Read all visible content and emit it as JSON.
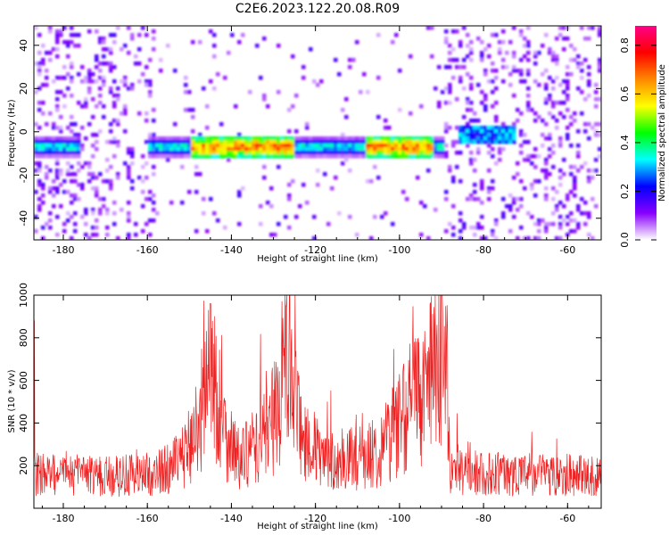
{
  "title": "C2E6.2023.122.20.08.R09",
  "colors": {
    "background": "#ffffff",
    "snr_line": "#ee2222",
    "axis": "#000000"
  },
  "chart_data": [
    {
      "type": "heatmap",
      "xlabel": "Height of straight line (km)",
      "ylabel": "Frequency (Hz)",
      "xlim": [
        -187,
        -52
      ],
      "ylim": [
        -50,
        49
      ],
      "xticks": [
        "-180",
        "-160",
        "-140",
        "-120",
        "-100",
        "-80",
        "-60"
      ],
      "yticks": [
        "40",
        "20",
        "0",
        "-20",
        "-40"
      ],
      "colorbar": {
        "label": "Normalized spectral amplitude",
        "range": [
          0,
          0.88
        ],
        "ticks": [
          "0.0",
          "0.2",
          "0.4",
          "0.6",
          "0.8"
        ],
        "colormap": [
          "#ffffff",
          "#8800ff",
          "#0000ff",
          "#00ffff",
          "#00ff00",
          "#ffff00",
          "#ff8800",
          "#ff0000",
          "#ff0088"
        ]
      },
      "main_band": {
        "frequency_hz": -7,
        "x_ranges": [
          [
            -187,
            -176
          ],
          [
            -160,
            -89
          ]
        ],
        "peak_value": 0.85
      },
      "secondary_band": {
        "frequency_hz": -2,
        "x_range": [
          -86,
          -72
        ],
        "peak_value": 0.35
      },
      "noise_regions": [
        {
          "x_range": [
            -187,
            -158
          ],
          "density": "high"
        },
        {
          "x_range": [
            -158,
            -89
          ],
          "density": "low"
        },
        {
          "x_range": [
            -89,
            -52
          ],
          "density": "high"
        }
      ]
    },
    {
      "type": "line",
      "xlabel": "Height of straight line (km)",
      "ylabel": "SNR (10 * v/v)",
      "xlim": [
        -187,
        -52
      ],
      "ylim": [
        0,
        1000
      ],
      "xticks": [
        "-180",
        "-160",
        "-140",
        "-120",
        "-100",
        "-80",
        "-60"
      ],
      "yticks": [
        "200",
        "400",
        "600",
        "800",
        "1000"
      ],
      "series": [
        {
          "color": "#ee2222",
          "profile": [
            [
              -187,
              160
            ],
            [
              -170,
              150
            ],
            [
              -158,
              160
            ],
            [
              -152,
              220
            ],
            [
              -148,
              380
            ],
            [
              -145,
              700
            ],
            [
              -142,
              380
            ],
            [
              -138,
              220
            ],
            [
              -132,
              330
            ],
            [
              -129,
              480
            ],
            [
              -127,
              700
            ],
            [
              -124,
              380
            ],
            [
              -118,
              220
            ],
            [
              -112,
              230
            ],
            [
              -106,
              250
            ],
            [
              -101,
              380
            ],
            [
              -97,
              500
            ],
            [
              -93,
              560
            ],
            [
              -90,
              800
            ],
            [
              -88.5,
              600
            ],
            [
              -88,
              170
            ],
            [
              -75,
              160
            ],
            [
              -60,
              160
            ],
            [
              -52,
              150
            ]
          ],
          "peaks": [
            [
              -145,
              960
            ],
            [
              -127,
              950
            ],
            [
              -90,
              1000
            ],
            [
              -187,
              880
            ]
          ]
        }
      ]
    }
  ]
}
